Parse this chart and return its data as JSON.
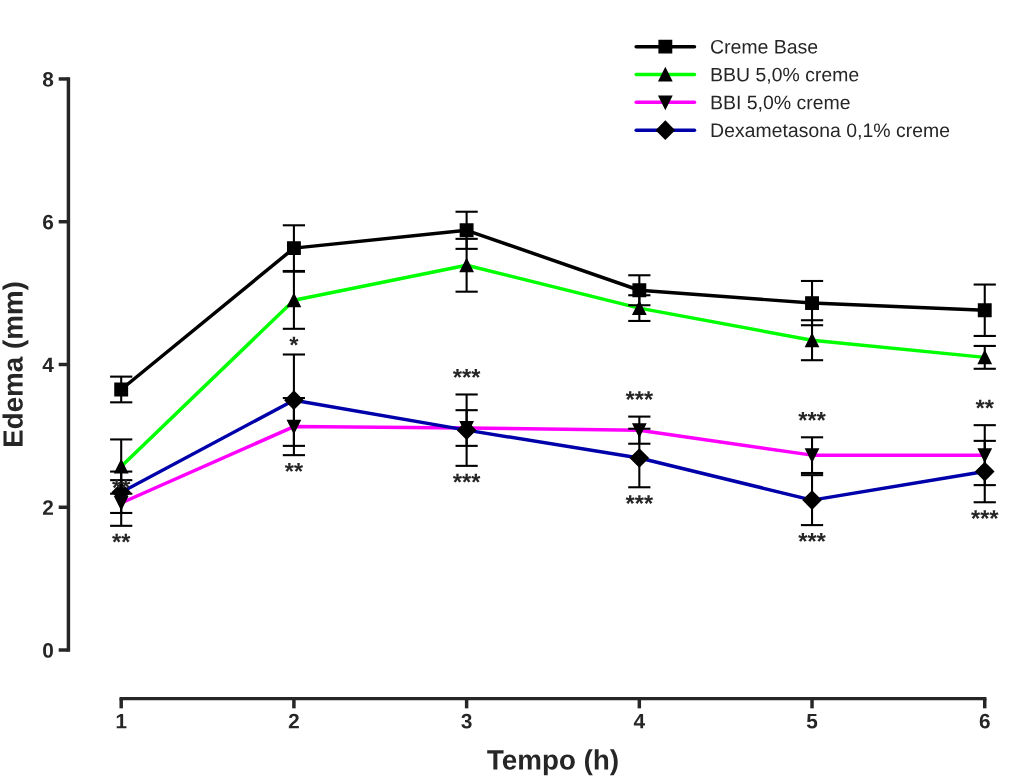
{
  "chart_data": {
    "type": "line",
    "xlabel": "Tempo (h)",
    "ylabel": "Edema (mm)",
    "x": [
      1,
      2,
      3,
      4,
      5,
      6
    ],
    "xlim": [
      1,
      6
    ],
    "xticks": [
      1,
      2,
      3,
      4,
      5,
      6
    ],
    "ylim": [
      0,
      8
    ],
    "yticks": [
      0,
      2,
      4,
      6,
      8
    ],
    "grid": false,
    "legend": "top right",
    "series": [
      {
        "name": "Creme Base",
        "color": "#000000",
        "marker": "square",
        "values": [
          3.65,
          5.63,
          5.88,
          5.04,
          4.86,
          4.76
        ],
        "errors": [
          0.18,
          0.32,
          0.26,
          0.21,
          0.31,
          0.36
        ]
      },
      {
        "name": "BBU 5,0% creme",
        "color": "#00ff00",
        "marker": "triangle",
        "values": [
          2.57,
          4.9,
          5.39,
          4.79,
          4.34,
          4.1
        ],
        "errors": [
          0.38,
          0.4,
          0.37,
          0.18,
          0.28,
          0.16
        ]
      },
      {
        "name": "BBI 5,0% creme",
        "color": "#ff00ff",
        "marker": "triangle_down",
        "values": [
          2.06,
          3.13,
          3.11,
          3.08,
          2.73,
          2.73
        ],
        "errors": [
          0.32,
          0.4,
          0.25,
          0.19,
          0.25,
          0.42
        ]
      },
      {
        "name": "Dexametasona 0,1% creme",
        "color": "#0000aa",
        "marker": "diamond",
        "values": [
          2.21,
          3.5,
          3.08,
          2.69,
          2.1,
          2.5
        ],
        "errors": [
          0.29,
          0.64,
          0.5,
          0.41,
          0.35,
          0.43
        ]
      }
    ],
    "annotations": [
      {
        "text": "**",
        "x": 1,
        "y": 2.5
      },
      {
        "text": "**",
        "x": 1,
        "y": 1.74
      },
      {
        "text": "*",
        "x": 2,
        "y": 4.5
      },
      {
        "text": "**",
        "x": 2,
        "y": 2.73
      },
      {
        "text": "***",
        "x": 3,
        "y": 3.58
      },
      {
        "text": "***",
        "x": 3,
        "y": 2.58
      },
      {
        "text": "***",
        "x": 4,
        "y": 3.27
      },
      {
        "text": "***",
        "x": 4,
        "y": 2.28
      },
      {
        "text": "***",
        "x": 5,
        "y": 2.98
      },
      {
        "text": "***",
        "x": 5,
        "y": 1.75
      },
      {
        "text": "**",
        "x": 6,
        "y": 3.15
      },
      {
        "text": "***",
        "x": 6,
        "y": 2.07
      }
    ]
  }
}
